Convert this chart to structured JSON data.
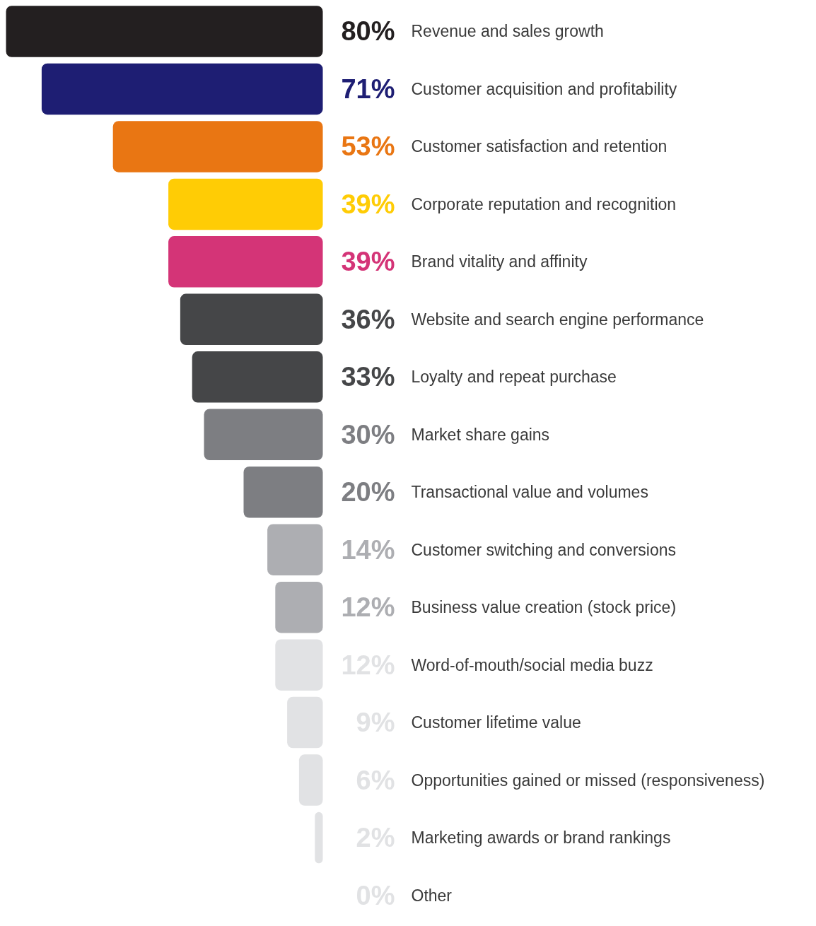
{
  "chart_data": {
    "type": "bar",
    "orientation": "horizontal",
    "categories": [
      "Revenue and sales growth",
      "Customer acquisition and profitability",
      "Customer satisfaction and retention",
      "Corporate reputation and recognition",
      "Brand vitality and affinity",
      "Website and search engine performance",
      "Loyalty and repeat purchase",
      "Market share gains",
      "Transactional value and volumes",
      "Customer switching and conversions",
      "Business value creation (stock price)",
      "Word-of-mouth/social media buzz",
      "Customer lifetime value",
      "Opportunities gained or missed (responsiveness)",
      "Marketing awards or brand rankings",
      "Other"
    ],
    "values": [
      80,
      71,
      53,
      39,
      39,
      36,
      33,
      30,
      20,
      14,
      12,
      12,
      9,
      6,
      2,
      0
    ],
    "value_labels": [
      "80%",
      "71%",
      "53%",
      "39%",
      "39%",
      "36%",
      "33%",
      "30%",
      "20%",
      "14%",
      "12%",
      "12%",
      "9%",
      "6%",
      "2%",
      "0%"
    ],
    "colors": [
      "#231f20",
      "#1e1e73",
      "#e97613",
      "#ffcc05",
      "#d43477",
      "#454648",
      "#454648",
      "#7d7e82",
      "#7d7e82",
      "#adaeb2",
      "#adaeb2",
      "#e1e2e4",
      "#e1e2e4",
      "#e1e2e4",
      "#e1e2e4",
      "#e1e2e4"
    ],
    "grid": false,
    "tick_labels": false
  }
}
